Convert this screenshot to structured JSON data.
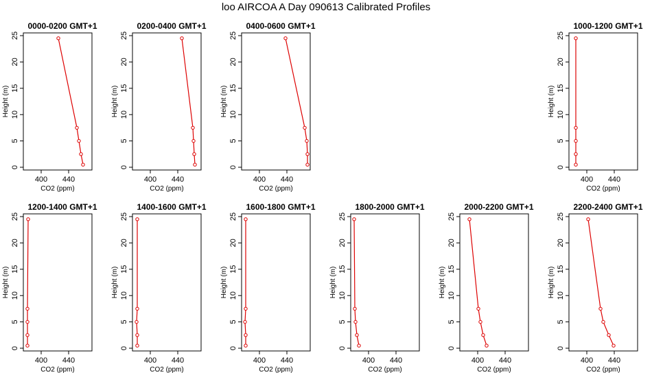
{
  "figure": {
    "title": "loo AIRCOA A  Day 090613  Calibrated Profiles"
  },
  "colors": {
    "profile": "#dd0000",
    "axes": "#000000",
    "background": "#ffffff"
  },
  "chart_data": [
    {
      "type": "line",
      "title": "0000-0200 GMT+1",
      "xlabel": "CO2 (ppm)",
      "ylabel": "Height (m)",
      "xlim": [
        374,
        474
      ],
      "ylim": [
        0,
        25
      ],
      "xticks": [
        400,
        440
      ],
      "yticks": [
        0,
        5,
        10,
        15,
        20,
        25
      ],
      "grid": false,
      "series": [
        {
          "x": [
            461,
            458,
            455,
            452,
            425
          ],
          "y": [
            0.5,
            2.5,
            5,
            7.5,
            24.5
          ]
        }
      ]
    },
    {
      "type": "line",
      "title": "0200-0400 GMT+1",
      "xlabel": "CO2 (ppm)",
      "ylabel": "Height (m)",
      "xlim": [
        374,
        474
      ],
      "ylim": [
        0,
        25
      ],
      "xticks": [
        400,
        440
      ],
      "yticks": [
        0,
        5,
        10,
        15,
        20,
        25
      ],
      "grid": false,
      "series": [
        {
          "x": [
            465,
            464,
            463,
            462,
            446
          ],
          "y": [
            0.5,
            2.5,
            5,
            7.5,
            24.5
          ]
        }
      ]
    },
    {
      "type": "line",
      "title": "0400-0600 GMT+1",
      "xlabel": "CO2 (ppm)",
      "ylabel": "Height (m)",
      "xlim": [
        374,
        474
      ],
      "ylim": [
        0,
        25
      ],
      "xticks": [
        400,
        440
      ],
      "yticks": [
        0,
        5,
        10,
        15,
        20,
        25
      ],
      "grid": false,
      "series": [
        {
          "x": [
            470,
            470,
            469,
            466,
            438
          ],
          "y": [
            0.5,
            2.5,
            5,
            7.5,
            24.5
          ]
        }
      ]
    },
    {
      "type": "line",
      "title": "1000-1200 GMT+1",
      "xlabel": "CO2 (ppm)",
      "ylabel": "Height (m)",
      "xlim": [
        374,
        474
      ],
      "ylim": [
        0,
        25
      ],
      "xticks": [
        400,
        440
      ],
      "yticks": [
        0,
        5,
        10,
        15,
        20,
        25
      ],
      "grid": false,
      "series": [
        {
          "x": [
            384,
            384,
            384,
            384,
            384
          ],
          "y": [
            0.5,
            2.5,
            5,
            7.5,
            24.5
          ]
        }
      ]
    },
    {
      "type": "line",
      "title": "1200-1400 GMT+1",
      "xlabel": "CO2 (ppm)",
      "ylabel": "Height (m)",
      "xlim": [
        374,
        474
      ],
      "ylim": [
        0,
        25
      ],
      "xticks": [
        400,
        440
      ],
      "yticks": [
        0,
        5,
        10,
        15,
        20,
        25
      ],
      "grid": false,
      "series": [
        {
          "x": [
            380,
            380,
            380,
            380,
            381
          ],
          "y": [
            0.5,
            2.5,
            5,
            7.5,
            24.5
          ]
        }
      ]
    },
    {
      "type": "line",
      "title": "1400-1600 GMT+1",
      "xlabel": "CO2 (ppm)",
      "ylabel": "Height (m)",
      "xlim": [
        374,
        474
      ],
      "ylim": [
        0,
        25
      ],
      "xticks": [
        400,
        440
      ],
      "yticks": [
        0,
        5,
        10,
        15,
        20,
        25
      ],
      "grid": false,
      "series": [
        {
          "x": [
            381,
            381,
            380,
            381,
            381
          ],
          "y": [
            0.5,
            2.5,
            5,
            7.5,
            24.5
          ]
        }
      ]
    },
    {
      "type": "line",
      "title": "1600-1800 GMT+1",
      "xlabel": "CO2 (ppm)",
      "ylabel": "Height (m)",
      "xlim": [
        374,
        474
      ],
      "ylim": [
        0,
        25
      ],
      "xticks": [
        400,
        440
      ],
      "yticks": [
        0,
        5,
        10,
        15,
        20,
        25
      ],
      "grid": false,
      "series": [
        {
          "x": [
            380,
            380,
            379,
            380,
            380
          ],
          "y": [
            0.5,
            2.5,
            5,
            7.5,
            24.5
          ]
        }
      ]
    },
    {
      "type": "line",
      "title": "1800-2000 GMT+1",
      "xlabel": "CO2 (ppm)",
      "ylabel": "Height (m)",
      "xlim": [
        374,
        474
      ],
      "ylim": [
        0,
        25
      ],
      "xticks": [
        400,
        440
      ],
      "yticks": [
        0,
        5,
        10,
        15,
        20,
        25
      ],
      "grid": false,
      "series": [
        {
          "x": [
            386,
            383,
            381,
            380,
            379
          ],
          "y": [
            0.5,
            2.5,
            5,
            7.5,
            24.5
          ]
        }
      ]
    },
    {
      "type": "line",
      "title": "2000-2200 GMT+1",
      "xlabel": "CO2 (ppm)",
      "ylabel": "Height (m)",
      "xlim": [
        374,
        474
      ],
      "ylim": [
        0,
        25
      ],
      "xticks": [
        400,
        440
      ],
      "yticks": [
        0,
        5,
        10,
        15,
        20,
        25
      ],
      "grid": false,
      "series": [
        {
          "x": [
            413,
            408,
            404,
            401,
            388
          ],
          "y": [
            0.5,
            2.5,
            5,
            7.5,
            24.5
          ]
        }
      ]
    },
    {
      "type": "line",
      "title": "2200-2400 GMT+1",
      "xlabel": "CO2 (ppm)",
      "ylabel": "Height (m)",
      "xlim": [
        374,
        474
      ],
      "ylim": [
        0,
        25
      ],
      "xticks": [
        400,
        440
      ],
      "yticks": [
        0,
        5,
        10,
        15,
        20,
        25
      ],
      "grid": false,
      "series": [
        {
          "x": [
            439,
            432,
            424,
            420,
            402
          ],
          "y": [
            0.5,
            2.5,
            5,
            7.5,
            24.5
          ]
        }
      ]
    }
  ]
}
